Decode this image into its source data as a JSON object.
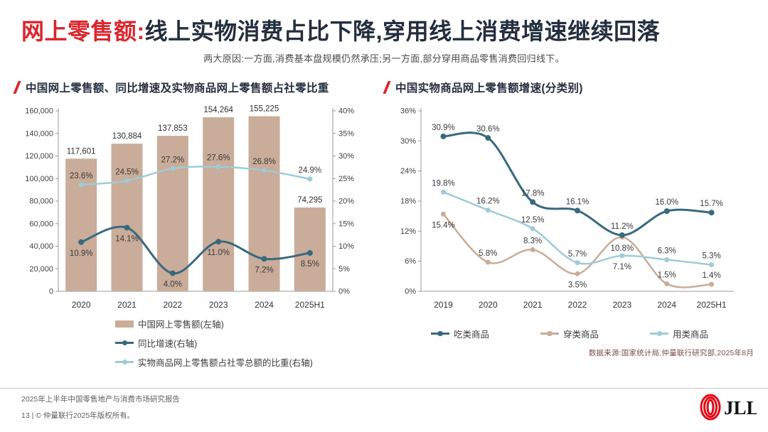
{
  "header": {
    "title_red": "网上零售额:",
    "title_main": "线上实物消费占比下降,穿用线上消费增速继续回落",
    "subtitle": "两大原因:一方面,消费基本盘规模仍然承压;另一方面,部分穿用商品零售消费回归线下。"
  },
  "colors": {
    "accent_red": "#d9262c",
    "title_navy": "#232e3e",
    "bar_tan": "#c9ac99",
    "dark_teal": "#38697e",
    "light_blue": "#9fcbd8",
    "axis_gray": "#9a9a9a",
    "label_gray": "#3a3a3a",
    "source_maroon": "#7d4e49"
  },
  "chart_data": [
    {
      "type": "bar+line",
      "title": "中国网上零售额、同比增速及实物商品网上零售额占社零比重",
      "categories": [
        "2020",
        "2021",
        "2022",
        "2023",
        "2024",
        "2025H1"
      ],
      "bar_series": {
        "name": "中国网上零售额(左轴)",
        "values": [
          117601,
          130884,
          137853,
          154264,
          155225,
          74295
        ],
        "color": "#c9ac99"
      },
      "line_series": [
        {
          "name": "同比增速(右轴)",
          "values": [
            10.9,
            14.1,
            4.0,
            11.0,
            7.2,
            8.5
          ],
          "color": "#38697e",
          "width": 3,
          "label_pos": [
            "below",
            "below",
            "below",
            "below",
            "below",
            "below"
          ]
        },
        {
          "name": "实物商品网上零售额占社零总额的比重(右轴)",
          "values": [
            23.6,
            24.5,
            27.2,
            27.6,
            26.8,
            24.9
          ],
          "color": "#9fcbd8",
          "width": 2.5,
          "label_pos": [
            "above",
            "above",
            "above",
            "above",
            "above",
            "above"
          ]
        }
      ],
      "left_axis": {
        "min": 0,
        "max": 160000,
        "step": 20000
      },
      "right_axis": {
        "min": 0,
        "max": 40,
        "step": 5,
        "suffix": "%"
      },
      "grid": false,
      "legend_position": "bottom-left"
    },
    {
      "type": "line",
      "title": "中国实物商品网上零售额增速(分类别)",
      "categories": [
        "2019",
        "2020",
        "2021",
        "2022",
        "2023",
        "2024",
        "2025H1"
      ],
      "series": [
        {
          "name": "吃类商品",
          "values": [
            30.9,
            30.6,
            17.8,
            16.1,
            11.2,
            16.0,
            15.7
          ],
          "color": "#38697e",
          "width": 3,
          "label_pos": [
            "above",
            "above",
            "above",
            "above",
            "above",
            "above",
            "above"
          ]
        },
        {
          "name": "穿类商品",
          "values": [
            15.4,
            5.8,
            8.3,
            3.5,
            10.8,
            1.5,
            1.4
          ],
          "color": "#c9ac99",
          "width": 2.5,
          "label_pos": [
            "below",
            "above",
            "above",
            "below",
            "below",
            "above",
            "above"
          ]
        },
        {
          "name": "用类商品",
          "values": [
            19.8,
            16.2,
            12.5,
            5.7,
            7.1,
            6.3,
            5.3
          ],
          "color": "#9fcbd8",
          "width": 2.5,
          "label_pos": [
            "above",
            "above",
            "above",
            "above",
            "below",
            "above",
            "above"
          ]
        }
      ],
      "y_axis": {
        "min": 0,
        "max": 36,
        "step": 6,
        "suffix": "%"
      },
      "grid": false,
      "legend_position": "bottom-center"
    }
  ],
  "source_note": "数据来源:国家统计局,仲量联行研究部,2025年8月",
  "footer": {
    "report_line": "2025年上半年中国零售地产与消费市场研究报告",
    "copyright_line": "13 | © 仲量联行2025年版权所有。",
    "logo_text": "JLL"
  }
}
